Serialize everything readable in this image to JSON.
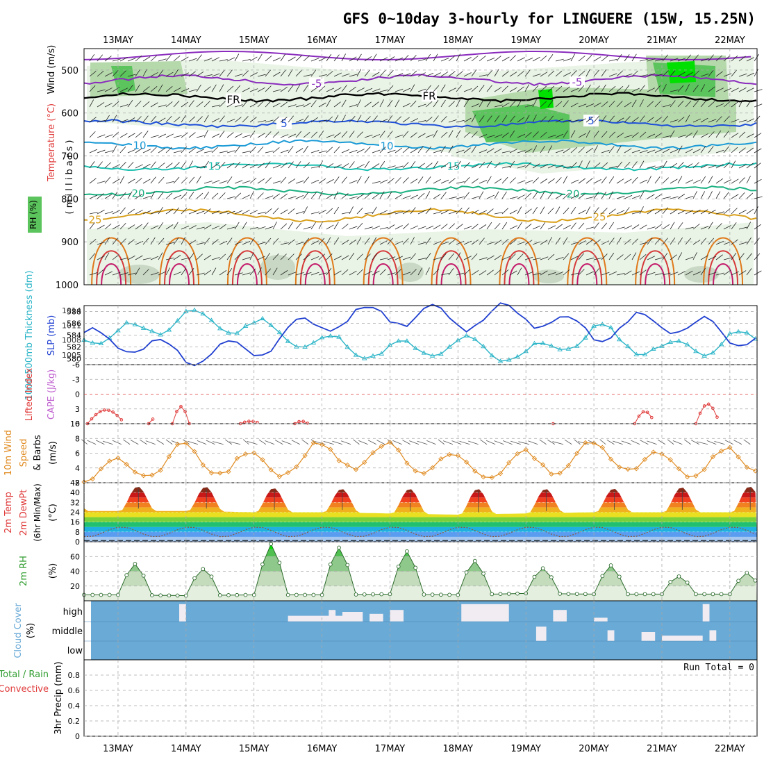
{
  "title": "GFS 0~10day 3-hourly for LINGUERE (15W, 15.25N)",
  "dates": [
    "13MAY",
    "14MAY",
    "15MAY",
    "16MAY",
    "17MAY",
    "18MAY",
    "19MAY",
    "20MAY",
    "21MAY",
    "22MAY"
  ],
  "panels": {
    "upper": {
      "label_wind": "Wind (m/s)",
      "label_temp": "Temperature (°C)",
      "label_rh": "RH (%)",
      "label_pressure": "( m i l l i b a r s )",
      "yticks": [
        "500",
        "600",
        "700",
        "800",
        "900",
        "1000"
      ],
      "contour_labels": [
        "-5",
        "-5",
        "FR",
        "FR",
        "5",
        "5",
        "10",
        "10",
        "15",
        "15",
        "20",
        "20",
        "25",
        "25",
        "50",
        "50",
        "50"
      ]
    },
    "thickness": {
      "label_left": "1000-500mb Thickness (dm)",
      "label_right": "SLP (mb)",
      "yticks_left": [
        "588",
        "586",
        "584",
        "582",
        "580"
      ],
      "yticks_right": [
        "1014",
        "1011",
        "1008",
        "1005"
      ]
    },
    "stability": {
      "label_left": "Lifted Index",
      "label_right": "CAPE (J/kg)",
      "yticks": [
        "-6",
        "-3",
        "0",
        "3",
        "6"
      ]
    },
    "wind10m": {
      "label": "10m Wind Speed (m/s) & Barbs",
      "label_a": "10m Wind",
      "label_b": "Speed",
      "label_c": "& Barbs",
      "unit": "(m/s)",
      "yticks": [
        "10",
        "8",
        "6",
        "4",
        "2"
      ]
    },
    "temp2m": {
      "label_a": "2m Temp",
      "label_b": "2m DewPt",
      "label_c": "(6hr Min/Max)",
      "unit": "(°C)",
      "yticks": [
        "48",
        "40",
        "32",
        "24",
        "16",
        "8",
        "0"
      ]
    },
    "rh2m": {
      "label": "2m RH",
      "unit": "(%)",
      "yticks": [
        "60",
        "40",
        "20"
      ]
    },
    "cloud": {
      "label": "Cloud Cover",
      "unit": "(%)",
      "yticks": [
        "high",
        "middle",
        "low"
      ]
    },
    "precip": {
      "label_a": "Total / Rain",
      "label_b": "Convective",
      "label_c": "3hr Precip (mm)",
      "yticks": [
        "0.8",
        "0.6",
        "0.4",
        "0.2",
        "0"
      ],
      "run_total": "Run Total = 0"
    }
  },
  "chart_data": [
    {
      "type": "line",
      "panel": "1000-500mb thickness (dm)",
      "ylim": [
        579,
        589
      ],
      "x": [
        "13MAY",
        "14MAY",
        "15MAY",
        "16MAY",
        "17MAY",
        "18MAY",
        "19MAY",
        "20MAY",
        "21MAY",
        "22MAY"
      ],
      "values": [
        584,
        586.8,
        585.4,
        582.5,
        581.2,
        582.3,
        580.5,
        584.5,
        581.3,
        583
      ]
    },
    {
      "type": "line",
      "panel": "SLP (mb)",
      "ylim": [
        1003,
        1015
      ],
      "x": [
        "13MAY",
        "14MAY",
        "15MAY",
        "16MAY",
        "17MAY",
        "18MAY",
        "19MAY",
        "20MAY",
        "21MAY",
        "22MAY"
      ],
      "values": [
        1008,
        1004.8,
        1006.1,
        1011.8,
        1013.4,
        1012.1,
        1013.6,
        1009.3,
        1012.2,
        1009
      ]
    },
    {
      "type": "line",
      "panel": "10m wind speed (m/s)",
      "ylim": [
        2,
        10
      ],
      "x": [
        "13MAY",
        "14MAY",
        "15MAY",
        "16MAY",
        "17MAY",
        "18MAY",
        "19MAY",
        "20MAY",
        "21MAY",
        "22MAY"
      ],
      "values": [
        3.5,
        5.5,
        4.0,
        5.8,
        5.5,
        4.0,
        4.5,
        6.0,
        4.5,
        5.0
      ]
    },
    {
      "type": "area",
      "panel": "2m temperature (°C)",
      "ylim": [
        0,
        48
      ],
      "x": [
        "13MAY",
        "14MAY",
        "15MAY",
        "16MAY",
        "17MAY",
        "18MAY",
        "19MAY",
        "20MAY",
        "21MAY",
        "22MAY"
      ],
      "max_values": [
        45,
        45,
        44,
        43,
        43,
        43,
        43,
        43,
        44,
        45
      ],
      "min_values": [
        25,
        25,
        24,
        24,
        23,
        22,
        23,
        24,
        24,
        24
      ]
    },
    {
      "type": "area",
      "panel": "2m RH (%)",
      "ylim": [
        0,
        80
      ],
      "x": [
        "13MAY",
        "14MAY",
        "15MAY",
        "16MAY",
        "17MAY",
        "18MAY",
        "19MAY",
        "20MAY",
        "21MAY",
        "22MAY"
      ],
      "max_values": [
        50,
        43,
        77,
        72,
        67,
        54,
        44,
        48,
        33,
        38
      ],
      "min_values": [
        8,
        7,
        8,
        8,
        9,
        8,
        10,
        9,
        9,
        9
      ]
    },
    {
      "type": "bar",
      "panel": "3hr precip (mm)",
      "ylim": [
        0,
        1
      ],
      "x": [
        "13MAY",
        "14MAY",
        "15MAY",
        "16MAY",
        "17MAY",
        "18MAY",
        "19MAY",
        "20MAY",
        "21MAY",
        "22MAY"
      ],
      "values": [
        0,
        0,
        0,
        0,
        0,
        0,
        0,
        0,
        0,
        0
      ]
    }
  ],
  "colors": {
    "slp": "#1f3fd0",
    "thickness": "#2bb5c8",
    "wind": "#e08a1e",
    "rh": "#2e9c2e",
    "cloud": "#6aaad6",
    "li": "#e03a3a",
    "grid": "#a8a8a8"
  }
}
